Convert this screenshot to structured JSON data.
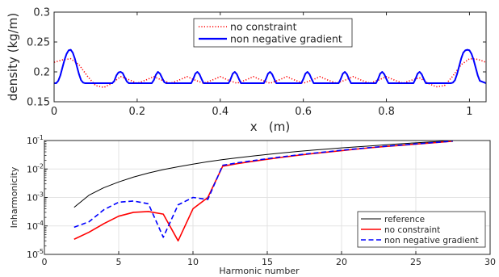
{
  "chart_data": [
    {
      "type": "line",
      "xlabel": "x   (m)",
      "ylabel": "density (kg/m)",
      "xlim": [
        0,
        1.04
      ],
      "ylim": [
        0.15,
        0.3
      ],
      "xticks": [
        0,
        0.2,
        0.4,
        0.6,
        0.8,
        1
      ],
      "xtick_labels": [
        "0",
        "0.2",
        "0.4",
        "0.6",
        "0.8",
        "1"
      ],
      "yticks": [
        0.15,
        0.2,
        0.25,
        0.3
      ],
      "ytick_labels": [
        "0.15",
        "0.2",
        "0.25",
        "0.3"
      ],
      "grid": false,
      "legend": "top-center",
      "series": [
        {
          "name": "no constraint",
          "color": "#ff0000",
          "style": "dotted",
          "x": [
            0,
            0.02,
            0.04,
            0.06,
            0.08,
            0.1,
            0.12,
            0.14,
            0.16,
            0.18,
            0.2,
            0.22,
            0.24,
            0.26,
            0.28,
            0.3,
            0.32,
            0.34,
            0.36,
            0.38,
            0.4,
            0.42,
            0.44,
            0.46,
            0.48,
            0.5,
            0.52,
            0.54,
            0.56,
            0.58,
            0.6,
            0.62,
            0.64,
            0.66,
            0.68,
            0.7,
            0.72,
            0.74,
            0.76,
            0.78,
            0.8,
            0.82,
            0.84,
            0.86,
            0.88,
            0.9,
            0.92,
            0.94,
            0.96,
            0.98,
            1.0,
            1.02,
            1.04
          ],
          "y": [
            0.216,
            0.22,
            0.222,
            0.212,
            0.193,
            0.177,
            0.174,
            0.181,
            0.192,
            0.187,
            0.181,
            0.186,
            0.192,
            0.186,
            0.181,
            0.186,
            0.192,
            0.186,
            0.181,
            0.186,
            0.192,
            0.186,
            0.181,
            0.186,
            0.192,
            0.186,
            0.181,
            0.186,
            0.192,
            0.186,
            0.181,
            0.186,
            0.192,
            0.186,
            0.181,
            0.186,
            0.192,
            0.186,
            0.181,
            0.186,
            0.192,
            0.186,
            0.181,
            0.186,
            0.19,
            0.181,
            0.175,
            0.177,
            0.193,
            0.212,
            0.222,
            0.221,
            0.216
          ]
        },
        {
          "name": "non negative gradient",
          "color": "#0000ff",
          "style": "solid",
          "x": [
            0,
            0.005,
            0.01,
            0.015,
            0.02,
            0.025,
            0.03,
            0.035,
            0.04,
            0.045,
            0.05,
            0.055,
            0.06,
            0.065,
            0.07,
            0.075,
            0.08,
            0.14,
            0.145,
            0.15,
            0.155,
            0.16,
            0.165,
            0.17,
            0.175,
            0.18,
            0.235,
            0.24,
            0.245,
            0.25,
            0.255,
            0.26,
            0.265,
            0.27,
            0.33,
            0.335,
            0.34,
            0.345,
            0.35,
            0.355,
            0.36,
            0.42,
            0.425,
            0.43,
            0.435,
            0.44,
            0.445,
            0.45,
            0.505,
            0.51,
            0.515,
            0.52,
            0.525,
            0.53,
            0.535,
            0.595,
            0.6,
            0.605,
            0.61,
            0.615,
            0.62,
            0.625,
            0.685,
            0.69,
            0.695,
            0.7,
            0.705,
            0.71,
            0.715,
            0.775,
            0.78,
            0.785,
            0.79,
            0.795,
            0.8,
            0.805,
            0.865,
            0.87,
            0.875,
            0.88,
            0.885,
            0.89,
            0.895,
            0.955,
            0.96,
            0.965,
            0.97,
            0.975,
            0.98,
            0.985,
            0.99,
            0.995,
            1.0,
            1.005,
            1.01,
            1.015,
            1.02,
            1.025,
            1.04
          ],
          "y": [
            0.181,
            0.181,
            0.185,
            0.194,
            0.207,
            0.22,
            0.23,
            0.236,
            0.237,
            0.232,
            0.222,
            0.209,
            0.196,
            0.186,
            0.182,
            0.181,
            0.181,
            0.181,
            0.185,
            0.194,
            0.199,
            0.2,
            0.198,
            0.191,
            0.184,
            0.181,
            0.181,
            0.186,
            0.195,
            0.2,
            0.197,
            0.19,
            0.183,
            0.181,
            0.181,
            0.188,
            0.197,
            0.2,
            0.196,
            0.188,
            0.181,
            0.181,
            0.188,
            0.197,
            0.2,
            0.196,
            0.188,
            0.181,
            0.181,
            0.188,
            0.197,
            0.2,
            0.196,
            0.188,
            0.181,
            0.181,
            0.188,
            0.197,
            0.2,
            0.196,
            0.188,
            0.181,
            0.181,
            0.188,
            0.197,
            0.2,
            0.196,
            0.188,
            0.181,
            0.181,
            0.188,
            0.197,
            0.2,
            0.196,
            0.188,
            0.181,
            0.181,
            0.188,
            0.197,
            0.2,
            0.196,
            0.188,
            0.181,
            0.181,
            0.182,
            0.186,
            0.196,
            0.209,
            0.222,
            0.232,
            0.236,
            0.237,
            0.236,
            0.23,
            0.22,
            0.207,
            0.194,
            0.185,
            0.181
          ]
        }
      ]
    },
    {
      "type": "line",
      "xlabel": "Harmonic number",
      "ylabel": "Inharmonicity",
      "xlim": [
        0,
        30
      ],
      "ylim": [
        1e-05,
        0.1
      ],
      "yscale": "log",
      "xticks": [
        0,
        5,
        10,
        15,
        20,
        25,
        30
      ],
      "xtick_labels": [
        "0",
        "5",
        "10",
        "15",
        "20",
        "25",
        "30"
      ],
      "yticks": [
        1e-05,
        0.0001,
        0.001,
        0.01,
        0.1
      ],
      "ytick_bases": [
        "10",
        "10",
        "10",
        "10",
        "10"
      ],
      "ytick_exponents": [
        "-5",
        "-4",
        "-3",
        "-2",
        "-1"
      ],
      "grid": true,
      "legend": "bottom-right",
      "series": [
        {
          "name": "reference",
          "color": "#000000",
          "style": "solid",
          "x": [
            2,
            3,
            4,
            5,
            6,
            7,
            8,
            9,
            10,
            11,
            12,
            13,
            14,
            15,
            16,
            17,
            18,
            19,
            20,
            21,
            22,
            23,
            24,
            25,
            26,
            27,
            27.5
          ],
          "y": [
            0.00045,
            0.0012,
            0.0022,
            0.0035,
            0.0052,
            0.0072,
            0.0095,
            0.012,
            0.0148,
            0.018,
            0.0213,
            0.0248,
            0.0285,
            0.0325,
            0.0365,
            0.041,
            0.0455,
            0.05,
            0.055,
            0.06,
            0.065,
            0.071,
            0.077,
            0.083,
            0.089,
            0.095,
            0.098
          ]
        },
        {
          "name": "no constraint",
          "color": "#ff0000",
          "style": "solid",
          "x": [
            2,
            3,
            4,
            5,
            6,
            7,
            8,
            9,
            10,
            11,
            12,
            13,
            14,
            15,
            16,
            17,
            18,
            19,
            20,
            21,
            22,
            23,
            24,
            25,
            26,
            27,
            27.5
          ],
          "y": [
            3.4e-05,
            6e-05,
            0.00012,
            0.00022,
            0.0003,
            0.00032,
            0.00026,
            3e-05,
            0.0004,
            0.001,
            0.0125,
            0.0155,
            0.0185,
            0.022,
            0.0258,
            0.03,
            0.0345,
            0.039,
            0.044,
            0.05,
            0.056,
            0.062,
            0.068,
            0.075,
            0.082,
            0.09,
            0.095
          ]
        },
        {
          "name": "non negative gradient",
          "color": "#0000ff",
          "style": "dashed",
          "x": [
            2,
            3,
            4,
            5,
            6,
            7,
            8,
            9,
            10,
            11,
            12,
            13,
            14,
            15,
            16,
            17,
            18,
            19,
            20,
            21,
            22,
            23,
            24,
            25,
            26,
            27,
            27.5
          ],
          "y": [
            9e-05,
            0.00014,
            0.00037,
            0.00068,
            0.00075,
            0.0006,
            4e-05,
            0.00055,
            0.001,
            0.00085,
            0.0135,
            0.0165,
            0.0195,
            0.023,
            0.0268,
            0.031,
            0.0355,
            0.04,
            0.0455,
            0.051,
            0.057,
            0.063,
            0.069,
            0.076,
            0.083,
            0.091,
            0.096
          ]
        }
      ]
    }
  ]
}
